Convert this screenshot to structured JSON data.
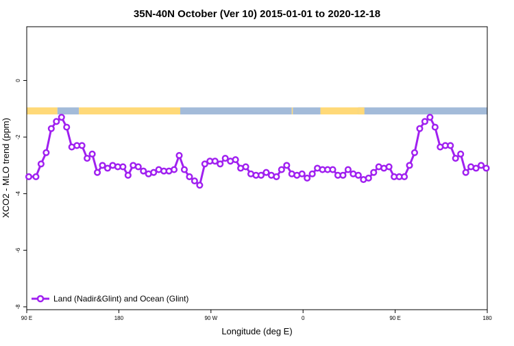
{
  "chart_data": {
    "type": "line",
    "title": "35N-40N October (Ver 10)   2015-01-01 to 2020-12-18",
    "xlabel": "Longitude (deg E)",
    "ylabel": "XCO2 - MLO trend (ppm)",
    "xlim": [
      90,
      540
    ],
    "ylim": [
      -8.1,
      1.9
    ],
    "x_ticks": [
      {
        "value": 90,
        "label": "90 E"
      },
      {
        "value": 180,
        "label": "180"
      },
      {
        "value": 270,
        "label": "90 W"
      },
      {
        "value": 360,
        "label": "0"
      },
      {
        "value": 450,
        "label": "90 E"
      },
      {
        "value": 540,
        "label": "180"
      }
    ],
    "y_ticks": [
      {
        "value": 0,
        "label": "0"
      },
      {
        "value": -2,
        "label": "-2"
      },
      {
        "value": -4,
        "label": "-4"
      },
      {
        "value": -6,
        "label": "-6"
      },
      {
        "value": -8,
        "label": "-8"
      }
    ],
    "legend": {
      "placement": "bottom-left",
      "label": "Land (Nadir&Glint) and Ocean (Glint)"
    },
    "grid": false,
    "colors": {
      "series": "#a020f0",
      "land": "#ffd978",
      "ocean": "#a3bbd9"
    },
    "surface_band": {
      "y_range": [
        -1.2,
        -0.95
      ],
      "segments": [
        {
          "type": "land",
          "x": [
            90,
            120
          ]
        },
        {
          "type": "ocean",
          "x": [
            120,
            141
          ]
        },
        {
          "type": "land",
          "x": [
            141,
            240
          ]
        },
        {
          "type": "ocean",
          "x": [
            240,
            349
          ]
        },
        {
          "type": "land",
          "x": [
            349,
            350
          ]
        },
        {
          "type": "ocean",
          "x": [
            350,
            377
          ]
        },
        {
          "type": "land",
          "x": [
            377,
            420
          ]
        },
        {
          "type": "ocean",
          "x": [
            420,
            414
          ]
        },
        {
          "type": "land",
          "x": [
            414,
            420
          ]
        },
        {
          "type": "ocean",
          "x": [
            420,
            540
          ]
        }
      ]
    },
    "series": [
      {
        "x": [
          92,
          99,
          104,
          109,
          114,
          119,
          124,
          129,
          134,
          139,
          144,
          149,
          154,
          159,
          164,
          169,
          174,
          179,
          184,
          189,
          194,
          199,
          204,
          209,
          214,
          219,
          224,
          229,
          234,
          239,
          244,
          249,
          254,
          259,
          264,
          269,
          274,
          279,
          284,
          289,
          294,
          299,
          304,
          309,
          314,
          319,
          324,
          329,
          334,
          339,
          344,
          349,
          354,
          359,
          364,
          369,
          374,
          379,
          384,
          389,
          394,
          399,
          404,
          409,
          414,
          419,
          424,
          429,
          434,
          439,
          444,
          449,
          454,
          459,
          464,
          469,
          474,
          479,
          484,
          489,
          494,
          499,
          504,
          509,
          514,
          519,
          524,
          529,
          534,
          539
        ],
        "y": [
          -3.4,
          -3.4,
          -2.95,
          -2.55,
          -1.7,
          -1.45,
          -1.3,
          -1.65,
          -2.35,
          -2.3,
          -2.3,
          -2.75,
          -2.6,
          -3.25,
          -3.0,
          -3.1,
          -3.0,
          -3.05,
          -3.05,
          -3.35,
          -3.0,
          -3.05,
          -3.2,
          -3.3,
          -3.25,
          -3.15,
          -3.2,
          -3.2,
          -3.15,
          -2.65,
          -3.15,
          -3.4,
          -3.55,
          -3.7,
          -2.95,
          -2.85,
          -2.85,
          -2.95,
          -2.75,
          -2.85,
          -2.8,
          -3.1,
          -3.05,
          -3.3,
          -3.35,
          -3.35,
          -3.25,
          -3.35,
          -3.4,
          -3.15,
          -3.0,
          -3.3,
          -3.35,
          -3.3,
          -3.45,
          -3.3,
          -3.1,
          -3.15,
          -3.15,
          -3.15,
          -3.35,
          -3.35,
          -3.15,
          -3.3,
          -3.35,
          -3.5,
          -3.45,
          -3.25,
          -3.05,
          -3.1,
          -3.05,
          -3.4,
          -3.4,
          -3.4,
          -3.0,
          -2.55,
          -1.7,
          -1.45,
          -1.3,
          -1.65,
          -2.35,
          -2.3,
          -2.3,
          -2.75,
          -2.6,
          -3.25,
          -3.05,
          -3.1,
          -3.0,
          -3.1
        ]
      }
    ]
  }
}
